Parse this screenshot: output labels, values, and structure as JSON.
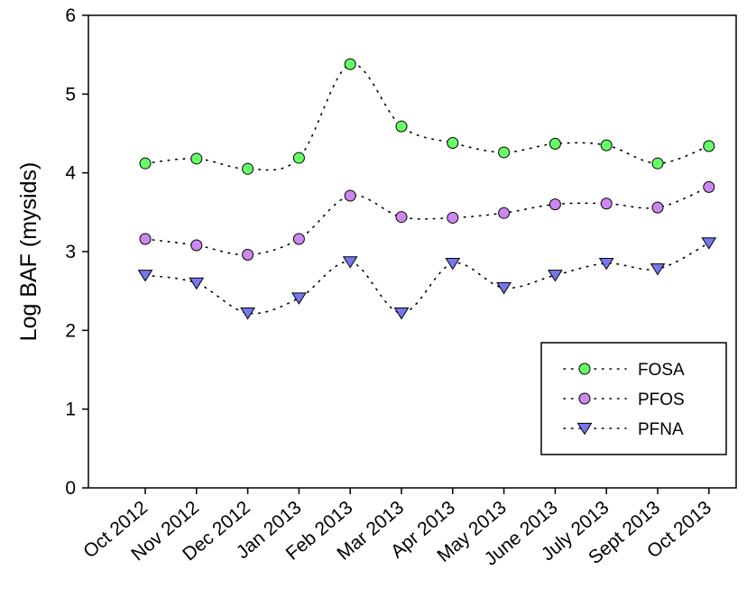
{
  "chart_data": {
    "type": "scatter",
    "categories": [
      "Oct 2012",
      "Nov 2012",
      "Dec 2012",
      "Jan 2013",
      "Feb 2013",
      "Mar 2013",
      "Apr 2013",
      "May 2013",
      "June 2013",
      "July 2013",
      "Sept 2013",
      "Oct 2013"
    ],
    "ylabel": "Log BAF (mysids)",
    "xlabel": "",
    "ylim": [
      0,
      6
    ],
    "yticks": [
      "0",
      "1",
      "2",
      "3",
      "4",
      "5",
      "6"
    ],
    "grid": false,
    "legend_position": "bottom-right",
    "series": [
      {
        "name": "FOSA",
        "color": "#66ff66",
        "marker": "circle",
        "values": [
          4.12,
          4.18,
          4.05,
          4.19,
          5.38,
          4.59,
          4.38,
          4.26,
          4.37,
          4.35,
          4.12,
          4.34
        ]
      },
      {
        "name": "PFOS",
        "color": "#cc88ee",
        "marker": "circle",
        "values": [
          3.16,
          3.08,
          2.96,
          3.16,
          3.71,
          3.44,
          3.43,
          3.49,
          3.6,
          3.61,
          3.56,
          3.82
        ]
      },
      {
        "name": "PFNA",
        "color": "#7777ee",
        "marker": "triangle-down",
        "values": [
          2.7,
          2.6,
          2.22,
          2.41,
          2.87,
          2.22,
          2.85,
          2.54,
          2.7,
          2.85,
          2.78,
          3.11
        ]
      }
    ]
  }
}
